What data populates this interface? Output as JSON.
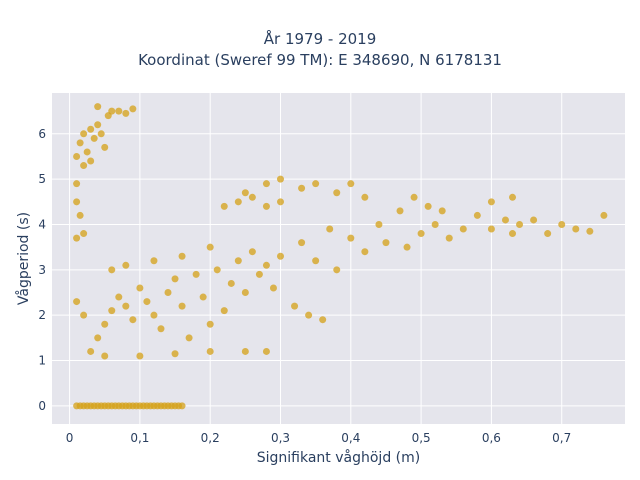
{
  "chart_data": {
    "type": "scatter",
    "title_line1": "År 1979 - 2019",
    "title_line2": "Koordinat (Sweref 99 TM): E 348690, N 6178131",
    "xlabel": "Signifikant våghöjd (m)",
    "ylabel": "Vågperiod (s)",
    "xlim": [
      -0.025,
      0.79
    ],
    "ylim": [
      -0.4,
      6.9
    ],
    "x_ticks": [
      0,
      0.1,
      0.2,
      0.3,
      0.4,
      0.5,
      0.6,
      0.7
    ],
    "x_tick_labels": [
      "0",
      "0,1",
      "0,2",
      "0,3",
      "0,4",
      "0,5",
      "0,6",
      "0,7"
    ],
    "y_ticks": [
      0,
      1,
      2,
      3,
      4,
      5,
      6
    ],
    "y_tick_labels": [
      "0",
      "1",
      "2",
      "3",
      "4",
      "5",
      "6"
    ],
    "grid": true,
    "colors": {
      "marker": "#D4A017",
      "plot_bg": "#E5E5EC",
      "grid": "#ffffff",
      "text": "#2a3f5f"
    },
    "series": [
      {
        "points": [
          [
            0.01,
            0
          ],
          [
            0.015,
            0
          ],
          [
            0.02,
            0
          ],
          [
            0.025,
            0
          ],
          [
            0.03,
            0
          ],
          [
            0.035,
            0
          ],
          [
            0.04,
            0
          ],
          [
            0.045,
            0
          ],
          [
            0.05,
            0
          ],
          [
            0.055,
            0
          ],
          [
            0.06,
            0
          ],
          [
            0.065,
            0
          ],
          [
            0.07,
            0
          ],
          [
            0.075,
            0
          ],
          [
            0.08,
            0
          ],
          [
            0.085,
            0
          ],
          [
            0.09,
            0
          ],
          [
            0.095,
            0
          ],
          [
            0.1,
            0
          ],
          [
            0.105,
            0
          ],
          [
            0.11,
            0
          ],
          [
            0.115,
            0
          ],
          [
            0.12,
            0
          ],
          [
            0.125,
            0
          ],
          [
            0.13,
            0
          ],
          [
            0.135,
            0
          ],
          [
            0.14,
            0
          ],
          [
            0.145,
            0
          ],
          [
            0.15,
            0
          ],
          [
            0.155,
            0
          ],
          [
            0.16,
            0
          ],
          [
            0.01,
            5.5
          ],
          [
            0.015,
            5.8
          ],
          [
            0.02,
            6.0
          ],
          [
            0.025,
            5.6
          ],
          [
            0.03,
            6.1
          ],
          [
            0.035,
            5.9
          ],
          [
            0.04,
            6.2
          ],
          [
            0.045,
            6.0
          ],
          [
            0.05,
            5.7
          ],
          [
            0.055,
            6.4
          ],
          [
            0.04,
            6.6
          ],
          [
            0.06,
            6.5
          ],
          [
            0.07,
            6.5
          ],
          [
            0.08,
            6.45
          ],
          [
            0.09,
            6.55
          ],
          [
            0.02,
            5.3
          ],
          [
            0.03,
            5.4
          ],
          [
            0.01,
            4.9
          ],
          [
            0.01,
            4.5
          ],
          [
            0.015,
            4.2
          ],
          [
            0.01,
            3.7
          ],
          [
            0.02,
            3.8
          ],
          [
            0.01,
            2.3
          ],
          [
            0.02,
            2.0
          ],
          [
            0.03,
            1.2
          ],
          [
            0.04,
            1.5
          ],
          [
            0.05,
            1.8
          ],
          [
            0.06,
            2.1
          ],
          [
            0.07,
            2.4
          ],
          [
            0.08,
            2.2
          ],
          [
            0.09,
            1.9
          ],
          [
            0.1,
            2.6
          ],
          [
            0.11,
            2.3
          ],
          [
            0.12,
            2.0
          ],
          [
            0.13,
            1.7
          ],
          [
            0.14,
            2.5
          ],
          [
            0.15,
            2.8
          ],
          [
            0.16,
            2.2
          ],
          [
            0.17,
            1.5
          ],
          [
            0.18,
            2.9
          ],
          [
            0.19,
            2.4
          ],
          [
            0.2,
            1.8
          ],
          [
            0.21,
            3.0
          ],
          [
            0.22,
            2.1
          ],
          [
            0.23,
            2.7
          ],
          [
            0.24,
            3.2
          ],
          [
            0.25,
            2.5
          ],
          [
            0.26,
            3.4
          ],
          [
            0.27,
            2.9
          ],
          [
            0.28,
            3.1
          ],
          [
            0.29,
            2.6
          ],
          [
            0.3,
            3.3
          ],
          [
            0.05,
            1.1
          ],
          [
            0.1,
            1.1
          ],
          [
            0.15,
            1.15
          ],
          [
            0.2,
            1.2
          ],
          [
            0.25,
            1.2
          ],
          [
            0.28,
            1.2
          ],
          [
            0.06,
            3.0
          ],
          [
            0.08,
            3.1
          ],
          [
            0.12,
            3.2
          ],
          [
            0.16,
            3.3
          ],
          [
            0.2,
            3.5
          ],
          [
            0.22,
            4.4
          ],
          [
            0.24,
            4.5
          ],
          [
            0.26,
            4.6
          ],
          [
            0.28,
            4.4
          ],
          [
            0.3,
            4.5
          ],
          [
            0.25,
            4.7
          ],
          [
            0.28,
            4.9
          ],
          [
            0.3,
            5.0
          ],
          [
            0.33,
            4.8
          ],
          [
            0.35,
            4.9
          ],
          [
            0.38,
            4.7
          ],
          [
            0.4,
            4.9
          ],
          [
            0.42,
            4.6
          ],
          [
            0.32,
            2.2
          ],
          [
            0.34,
            2.0
          ],
          [
            0.36,
            1.9
          ],
          [
            0.33,
            3.6
          ],
          [
            0.35,
            3.2
          ],
          [
            0.37,
            3.9
          ],
          [
            0.38,
            3.0
          ],
          [
            0.4,
            3.7
          ],
          [
            0.42,
            3.4
          ],
          [
            0.44,
            4.0
          ],
          [
            0.45,
            3.6
          ],
          [
            0.47,
            4.3
          ],
          [
            0.48,
            3.5
          ],
          [
            0.5,
            3.8
          ],
          [
            0.52,
            4.0
          ],
          [
            0.54,
            3.7
          ],
          [
            0.56,
            3.9
          ],
          [
            0.58,
            4.2
          ],
          [
            0.6,
            3.9
          ],
          [
            0.62,
            4.1
          ],
          [
            0.63,
            3.8
          ],
          [
            0.64,
            4.0
          ],
          [
            0.66,
            4.1
          ],
          [
            0.68,
            3.8
          ],
          [
            0.7,
            4.0
          ],
          [
            0.72,
            3.9
          ],
          [
            0.74,
            3.85
          ],
          [
            0.76,
            4.2
          ],
          [
            0.49,
            4.6
          ],
          [
            0.51,
            4.4
          ],
          [
            0.53,
            4.3
          ],
          [
            0.6,
            4.5
          ],
          [
            0.63,
            4.6
          ]
        ]
      }
    ]
  }
}
